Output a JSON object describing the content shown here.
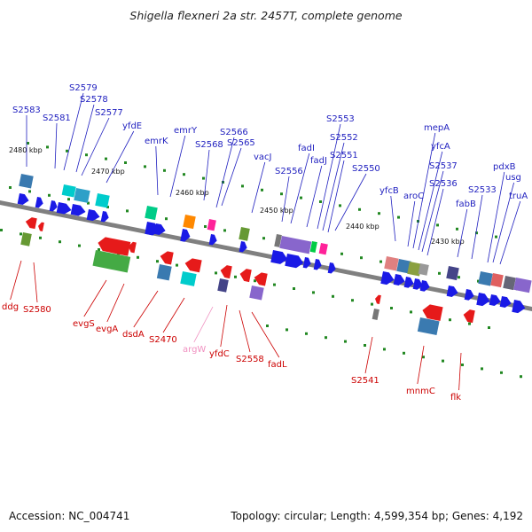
{
  "title": "Shigella flexneri 2a str. 2457T, complete genome",
  "footer": {
    "accession": "Accession: NC_004741",
    "topology": "Topology: circular; Length: 4,599,354 bp; Genes: 4,192"
  },
  "colors": {
    "backbone": "#808080",
    "label_forward": "#1f1fbf",
    "label_reverse": "#cc0000",
    "label_rna": "#f090c0",
    "tick": "#228822",
    "arrow_forward": "#1a1ae6",
    "arrow_reverse": "#e61a1a"
  },
  "kbp_ticks": [
    "2480 kbp",
    "2470 kbp",
    "2460 kbp",
    "2450 kbp",
    "2440 kbp",
    "2430 kbp"
  ],
  "forward_labels": [
    "S2583",
    "S2581",
    "S2579",
    "S2578",
    "S2577",
    "yfdE",
    "emrK",
    "emrY",
    "S2568",
    "S2566",
    "S2565",
    "vacJ",
    "S2556",
    "fadI",
    "fadJ",
    "S2553",
    "S2552",
    "S2551",
    "S2550",
    "yfcB",
    "aroC",
    "mepA",
    "yfcA",
    "S2537",
    "S2536",
    "fabB",
    "S2533",
    "pdxB",
    "usg",
    "truA"
  ],
  "reverse_labels": [
    "ddg",
    "S2580",
    "evgS",
    "evgA",
    "dsdA",
    "S2470",
    "argW",
    "yfdC",
    "S2558",
    "fadL",
    "S2541",
    "mnmC",
    "flk"
  ]
}
